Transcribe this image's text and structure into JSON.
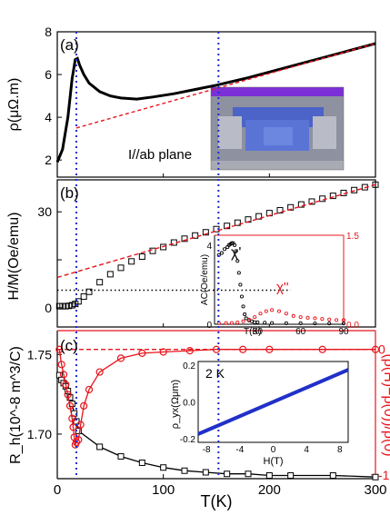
{
  "chart_data": [
    {
      "panel": "(a)",
      "type": "line",
      "ylabel": "ρ(μΩ.m)",
      "xlim": [
        0,
        300
      ],
      "ylim": [
        1.2,
        8
      ],
      "yticks": [
        "2",
        "4",
        "6",
        "8"
      ],
      "annotation": "I//ab plane",
      "series": [
        {
          "color": "#000000",
          "x": [
            0,
            5,
            10,
            14,
            17,
            19,
            21,
            25,
            30,
            40,
            50,
            60,
            75,
            90,
            110,
            130,
            150,
            180,
            210,
            240,
            270,
            300
          ],
          "y": [
            1.9,
            2.5,
            4.0,
            5.8,
            6.7,
            6.75,
            6.45,
            6.0,
            5.6,
            5.2,
            5.0,
            4.9,
            4.85,
            4.95,
            5.1,
            5.3,
            5.5,
            5.85,
            6.25,
            6.65,
            7.05,
            7.45
          ]
        },
        {
          "color": "#e8141c",
          "style": "dashed",
          "x": [
            18,
            300
          ],
          "y": [
            3.5,
            7.45
          ]
        }
      ],
      "inset_image": "device micrograph"
    },
    {
      "panel": "(b)",
      "type": "scatter",
      "ylabel": "H/M(Oe/emu)",
      "xlim": [
        0,
        300
      ],
      "ylim": [
        -6,
        40
      ],
      "yticks": [
        "0",
        "",
        "30"
      ],
      "series": [
        {
          "color": "#000000",
          "marker": "open-square",
          "x": [
            2,
            5,
            8,
            11,
            14,
            17,
            20,
            25,
            30,
            40,
            50,
            60,
            70,
            80,
            90,
            100,
            110,
            120,
            130,
            140,
            150,
            160,
            170,
            180,
            190,
            200,
            210,
            220,
            230,
            240,
            250,
            260,
            270,
            280,
            290,
            300
          ],
          "y": [
            0.5,
            0.5,
            0.5,
            0.6,
            0.8,
            1.2,
            2.0,
            3.5,
            5.0,
            8.0,
            10.5,
            12.5,
            14.5,
            16.0,
            17.8,
            19.0,
            20.4,
            21.6,
            22.6,
            23.6,
            24.6,
            25.6,
            26.6,
            27.6,
            28.6,
            29.6,
            30.5,
            31.4,
            32.3,
            33.2,
            34.1,
            35.0,
            35.9,
            36.8,
            37.7,
            38.5
          ]
        },
        {
          "color": "#e8141c",
          "style": "dashed",
          "x": [
            0,
            300
          ],
          "y": [
            9.5,
            38.5
          ]
        },
        {
          "color": "#000000",
          "style": "dotted",
          "x": [
            0,
            220
          ],
          "y": [
            5.5,
            5.5
          ]
        }
      ],
      "inset": {
        "xlabel": "T(K)",
        "ylabel_left": "AC(Oe/emu)",
        "xticks": [
          "30",
          "60",
          "90"
        ],
        "yticks_left": [
          "0",
          "4"
        ],
        "yticks_right": [
          "0.0",
          "1.5"
        ],
        "xlim": [
          0,
          90
        ],
        "ylim_left": [
          0,
          4.5
        ],
        "ylim_right": [
          0,
          1.5
        ],
        "labels": [
          "χ'",
          "χ''"
        ],
        "series": [
          {
            "name": "χ'",
            "color": "#000000",
            "x": [
              3,
              5,
              7,
              9,
              10,
              11,
              12,
              13,
              14,
              15,
              16,
              17,
              18,
              19,
              20,
              21,
              22,
              24,
              26,
              28,
              30,
              35,
              40,
              50,
              60,
              70,
              80,
              90
            ],
            "y": [
              3.5,
              3.6,
              3.8,
              3.9,
              4.0,
              4.05,
              4.1,
              4.1,
              4.0,
              3.7,
              3.2,
              2.6,
              2.0,
              1.4,
              0.9,
              0.5,
              0.3,
              0.2,
              0.15,
              0.1,
              0.1,
              0.08,
              0.06,
              0.05,
              0.05,
              0.04,
              0.04,
              0.04
            ]
          },
          {
            "name": "χ''",
            "color": "#e8141c",
            "x": [
              3,
              8,
              12,
              16,
              20,
              24,
              28,
              32,
              36,
              40,
              45,
              50,
              55,
              60,
              65,
              70,
              75,
              80,
              85,
              90
            ],
            "y": [
              0.02,
              0.02,
              0.02,
              0.03,
              0.05,
              0.08,
              0.12,
              0.18,
              0.22,
              0.24,
              0.22,
              0.18,
              0.14,
              0.12,
              0.11,
              0.1,
              0.09,
              0.08,
              0.07,
              0.07
            ]
          }
        ]
      }
    },
    {
      "panel": "(c)",
      "type": "line",
      "xlabel": "T(K)",
      "xticks": [
        "0",
        "100",
        "200",
        "300"
      ],
      "xlim": [
        0,
        300
      ],
      "ylabel": "R_h(10^-8 m^3/C)",
      "ylim": [
        1.672,
        1.765
      ],
      "yticks": [
        "1.75",
        "1.70"
      ],
      "ylabel_right": "(ρ(H)−ρ(0))/ρ(0)",
      "ylim_right": [
        -1.03,
        0.15
      ],
      "yticks_right": [
        "0",
        "-1"
      ],
      "series": [
        {
          "color": "#000000",
          "marker": "open-square",
          "x": [
            2,
            4,
            6,
            8,
            10,
            12,
            14,
            16,
            18,
            20,
            40,
            60,
            80,
            100,
            120,
            140,
            160,
            180,
            200,
            220,
            260,
            300
          ],
          "y": [
            1.737,
            1.734,
            1.732,
            1.73,
            1.727,
            1.723,
            1.719,
            1.713,
            1.708,
            1.702,
            1.692,
            1.686,
            1.682,
            1.679,
            1.677,
            1.676,
            1.675,
            1.675,
            1.674,
            1.674,
            1.674,
            1.673
          ]
        },
        {
          "color": "#e8141c",
          "marker": "open-circle",
          "axis": "right",
          "x": [
            2,
            4,
            6,
            8,
            10,
            12,
            14,
            15,
            16,
            17,
            18,
            20,
            22,
            25,
            30,
            40,
            60,
            80,
            100,
            125,
            150,
            175,
            200,
            250,
            300
          ],
          "y": [
            0,
            -0.12,
            -0.2,
            -0.28,
            -0.36,
            -0.45,
            -0.55,
            -0.62,
            -0.7,
            -0.76,
            -0.74,
            -0.72,
            -0.6,
            -0.45,
            -0.32,
            -0.18,
            -0.07,
            -0.03,
            -0.02,
            -0.01,
            0,
            0,
            0,
            0,
            0
          ]
        },
        {
          "color": "#e8141c",
          "style": "dashed",
          "axis": "right",
          "x": [
            0,
            300
          ],
          "y": [
            0,
            0
          ]
        }
      ],
      "inset": {
        "label": "2 K",
        "xlabel": "H(T)",
        "ylabel": "ρ_yx(Ωμm)",
        "xticks": [
          "-8",
          "-4",
          "0",
          "4",
          "8"
        ],
        "yticks": [
          "0.2",
          "0.0",
          "-0.2"
        ],
        "xlim": [
          -9,
          9
        ],
        "ylim": [
          -0.22,
          0.22
        ],
        "series": [
          {
            "color": "#2030c8",
            "x": [
              -9,
              9
            ],
            "y": [
              -0.175,
              0.175
            ]
          }
        ]
      }
    }
  ]
}
